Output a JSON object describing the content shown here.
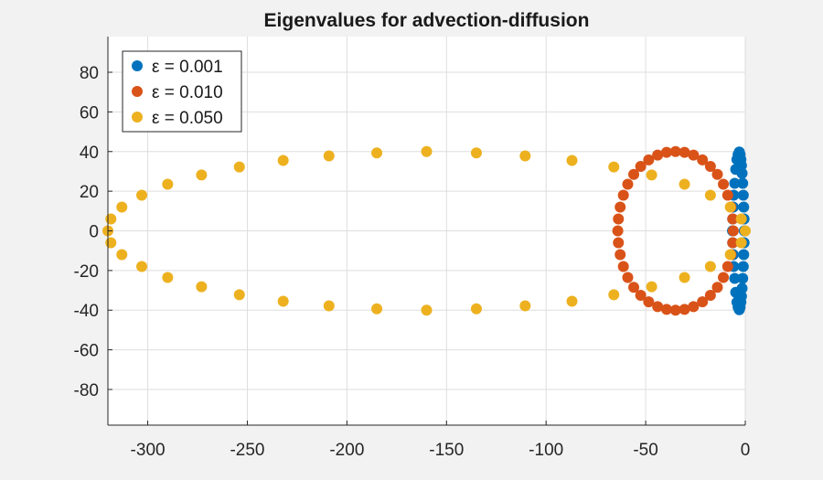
{
  "chart_data": {
    "type": "scatter",
    "title": "Eigenvalues for advection-diffusion",
    "xlabel": "",
    "ylabel": "",
    "xlim": [
      -320,
      0
    ],
    "ylim": [
      -98,
      98
    ],
    "xticks": [
      -300,
      -250,
      -200,
      -150,
      -100,
      -50,
      0
    ],
    "yticks": [
      -80,
      -60,
      -40,
      -20,
      0,
      20,
      40,
      60,
      80
    ],
    "grid": true,
    "legend_position": "top-left",
    "series": [
      {
        "name": "ε = 0.001",
        "color": "#0072BD",
        "points": [
          [
            -0.5,
            0
          ],
          [
            -0.6,
            6
          ],
          [
            -0.6,
            -6
          ],
          [
            -0.8,
            12
          ],
          [
            -0.8,
            -12
          ],
          [
            -1,
            18
          ],
          [
            -1,
            -18
          ],
          [
            -1.3,
            24
          ],
          [
            -1.3,
            -24
          ],
          [
            -1.6,
            29
          ],
          [
            -1.6,
            -29
          ],
          [
            -1.9,
            33
          ],
          [
            -1.9,
            -33
          ],
          [
            -2.2,
            36
          ],
          [
            -2.2,
            -36
          ],
          [
            -2.6,
            38.5
          ],
          [
            -2.6,
            -38.5
          ],
          [
            -3,
            39.8
          ],
          [
            -3,
            -39.8
          ],
          [
            -3.6,
            38.5
          ],
          [
            -3.6,
            -38.5
          ],
          [
            -4.2,
            36
          ],
          [
            -4.2,
            -36
          ],
          [
            -4.8,
            31
          ],
          [
            -4.8,
            -31
          ],
          [
            -5.3,
            24
          ],
          [
            -5.3,
            -24
          ],
          [
            -5.8,
            18
          ],
          [
            -5.8,
            -18
          ],
          [
            -6,
            12
          ],
          [
            -6,
            -12
          ],
          [
            -6.3,
            6
          ],
          [
            -6.3,
            -6
          ],
          [
            -6.4,
            0
          ]
        ]
      },
      {
        "name": "ε = 0.010",
        "color": "#D95319",
        "points": [
          [
            -64,
            0
          ],
          [
            -63.7,
            6
          ],
          [
            -63.7,
            -6
          ],
          [
            -62.8,
            12
          ],
          [
            -62.8,
            -12
          ],
          [
            -61.2,
            18
          ],
          [
            -61.2,
            -18
          ],
          [
            -59,
            23.5
          ],
          [
            -59,
            -23.5
          ],
          [
            -56,
            28.5
          ],
          [
            -56,
            -28.5
          ],
          [
            -52.5,
            32.5
          ],
          [
            -52.5,
            -32.5
          ],
          [
            -48.5,
            35.8
          ],
          [
            -48.5,
            -35.8
          ],
          [
            -44,
            38.2
          ],
          [
            -44,
            -38.2
          ],
          [
            -39.5,
            39.6
          ],
          [
            -39.5,
            -39.6
          ],
          [
            -35,
            40
          ],
          [
            -35,
            -40
          ],
          [
            -30.5,
            39.6
          ],
          [
            -30.5,
            -39.6
          ],
          [
            -26,
            38.2
          ],
          [
            -26,
            -38.2
          ],
          [
            -21.5,
            35.8
          ],
          [
            -21.5,
            -35.8
          ],
          [
            -17.5,
            32.5
          ],
          [
            -17.5,
            -32.5
          ],
          [
            -14,
            28.5
          ],
          [
            -14,
            -28.5
          ],
          [
            -11,
            23.5
          ],
          [
            -11,
            -23.5
          ],
          [
            -8.8,
            18
          ],
          [
            -8.8,
            -18
          ],
          [
            -7.2,
            12
          ],
          [
            -7.2,
            -12
          ],
          [
            -6.3,
            6
          ],
          [
            -6.3,
            -6
          ],
          [
            -6,
            0
          ]
        ]
      },
      {
        "name": "ε = 0.050",
        "color": "#EDB120",
        "points": [
          [
            -320,
            0
          ],
          [
            -318.5,
            6
          ],
          [
            -318.5,
            -6
          ],
          [
            -313,
            12
          ],
          [
            -313,
            -12
          ],
          [
            -303,
            18
          ],
          [
            -303,
            -18
          ],
          [
            -290,
            23.5
          ],
          [
            -290,
            -23.5
          ],
          [
            -273,
            28.2
          ],
          [
            -273,
            -28.2
          ],
          [
            -254,
            32.2
          ],
          [
            -254,
            -32.2
          ],
          [
            -232,
            35.5
          ],
          [
            -232,
            -35.5
          ],
          [
            -209,
            37.8
          ],
          [
            -209,
            -37.8
          ],
          [
            -185,
            39.3
          ],
          [
            -185,
            -39.3
          ],
          [
            -160,
            40
          ],
          [
            -160,
            -40
          ],
          [
            -135,
            39.3
          ],
          [
            -135,
            -39.3
          ],
          [
            -110.5,
            37.8
          ],
          [
            -110.5,
            -37.8
          ],
          [
            -87,
            35.5
          ],
          [
            -87,
            -35.5
          ],
          [
            -66,
            32.2
          ],
          [
            -66,
            -32.2
          ],
          [
            -47,
            28.2
          ],
          [
            -47,
            -28.2
          ],
          [
            -30.5,
            23.5
          ],
          [
            -30.5,
            -23.5
          ],
          [
            -17.5,
            18
          ],
          [
            -17.5,
            -18
          ],
          [
            -7.5,
            12
          ],
          [
            -7.5,
            -12
          ],
          [
            -2,
            6
          ],
          [
            -2,
            -6
          ],
          [
            0,
            0
          ]
        ]
      }
    ]
  }
}
